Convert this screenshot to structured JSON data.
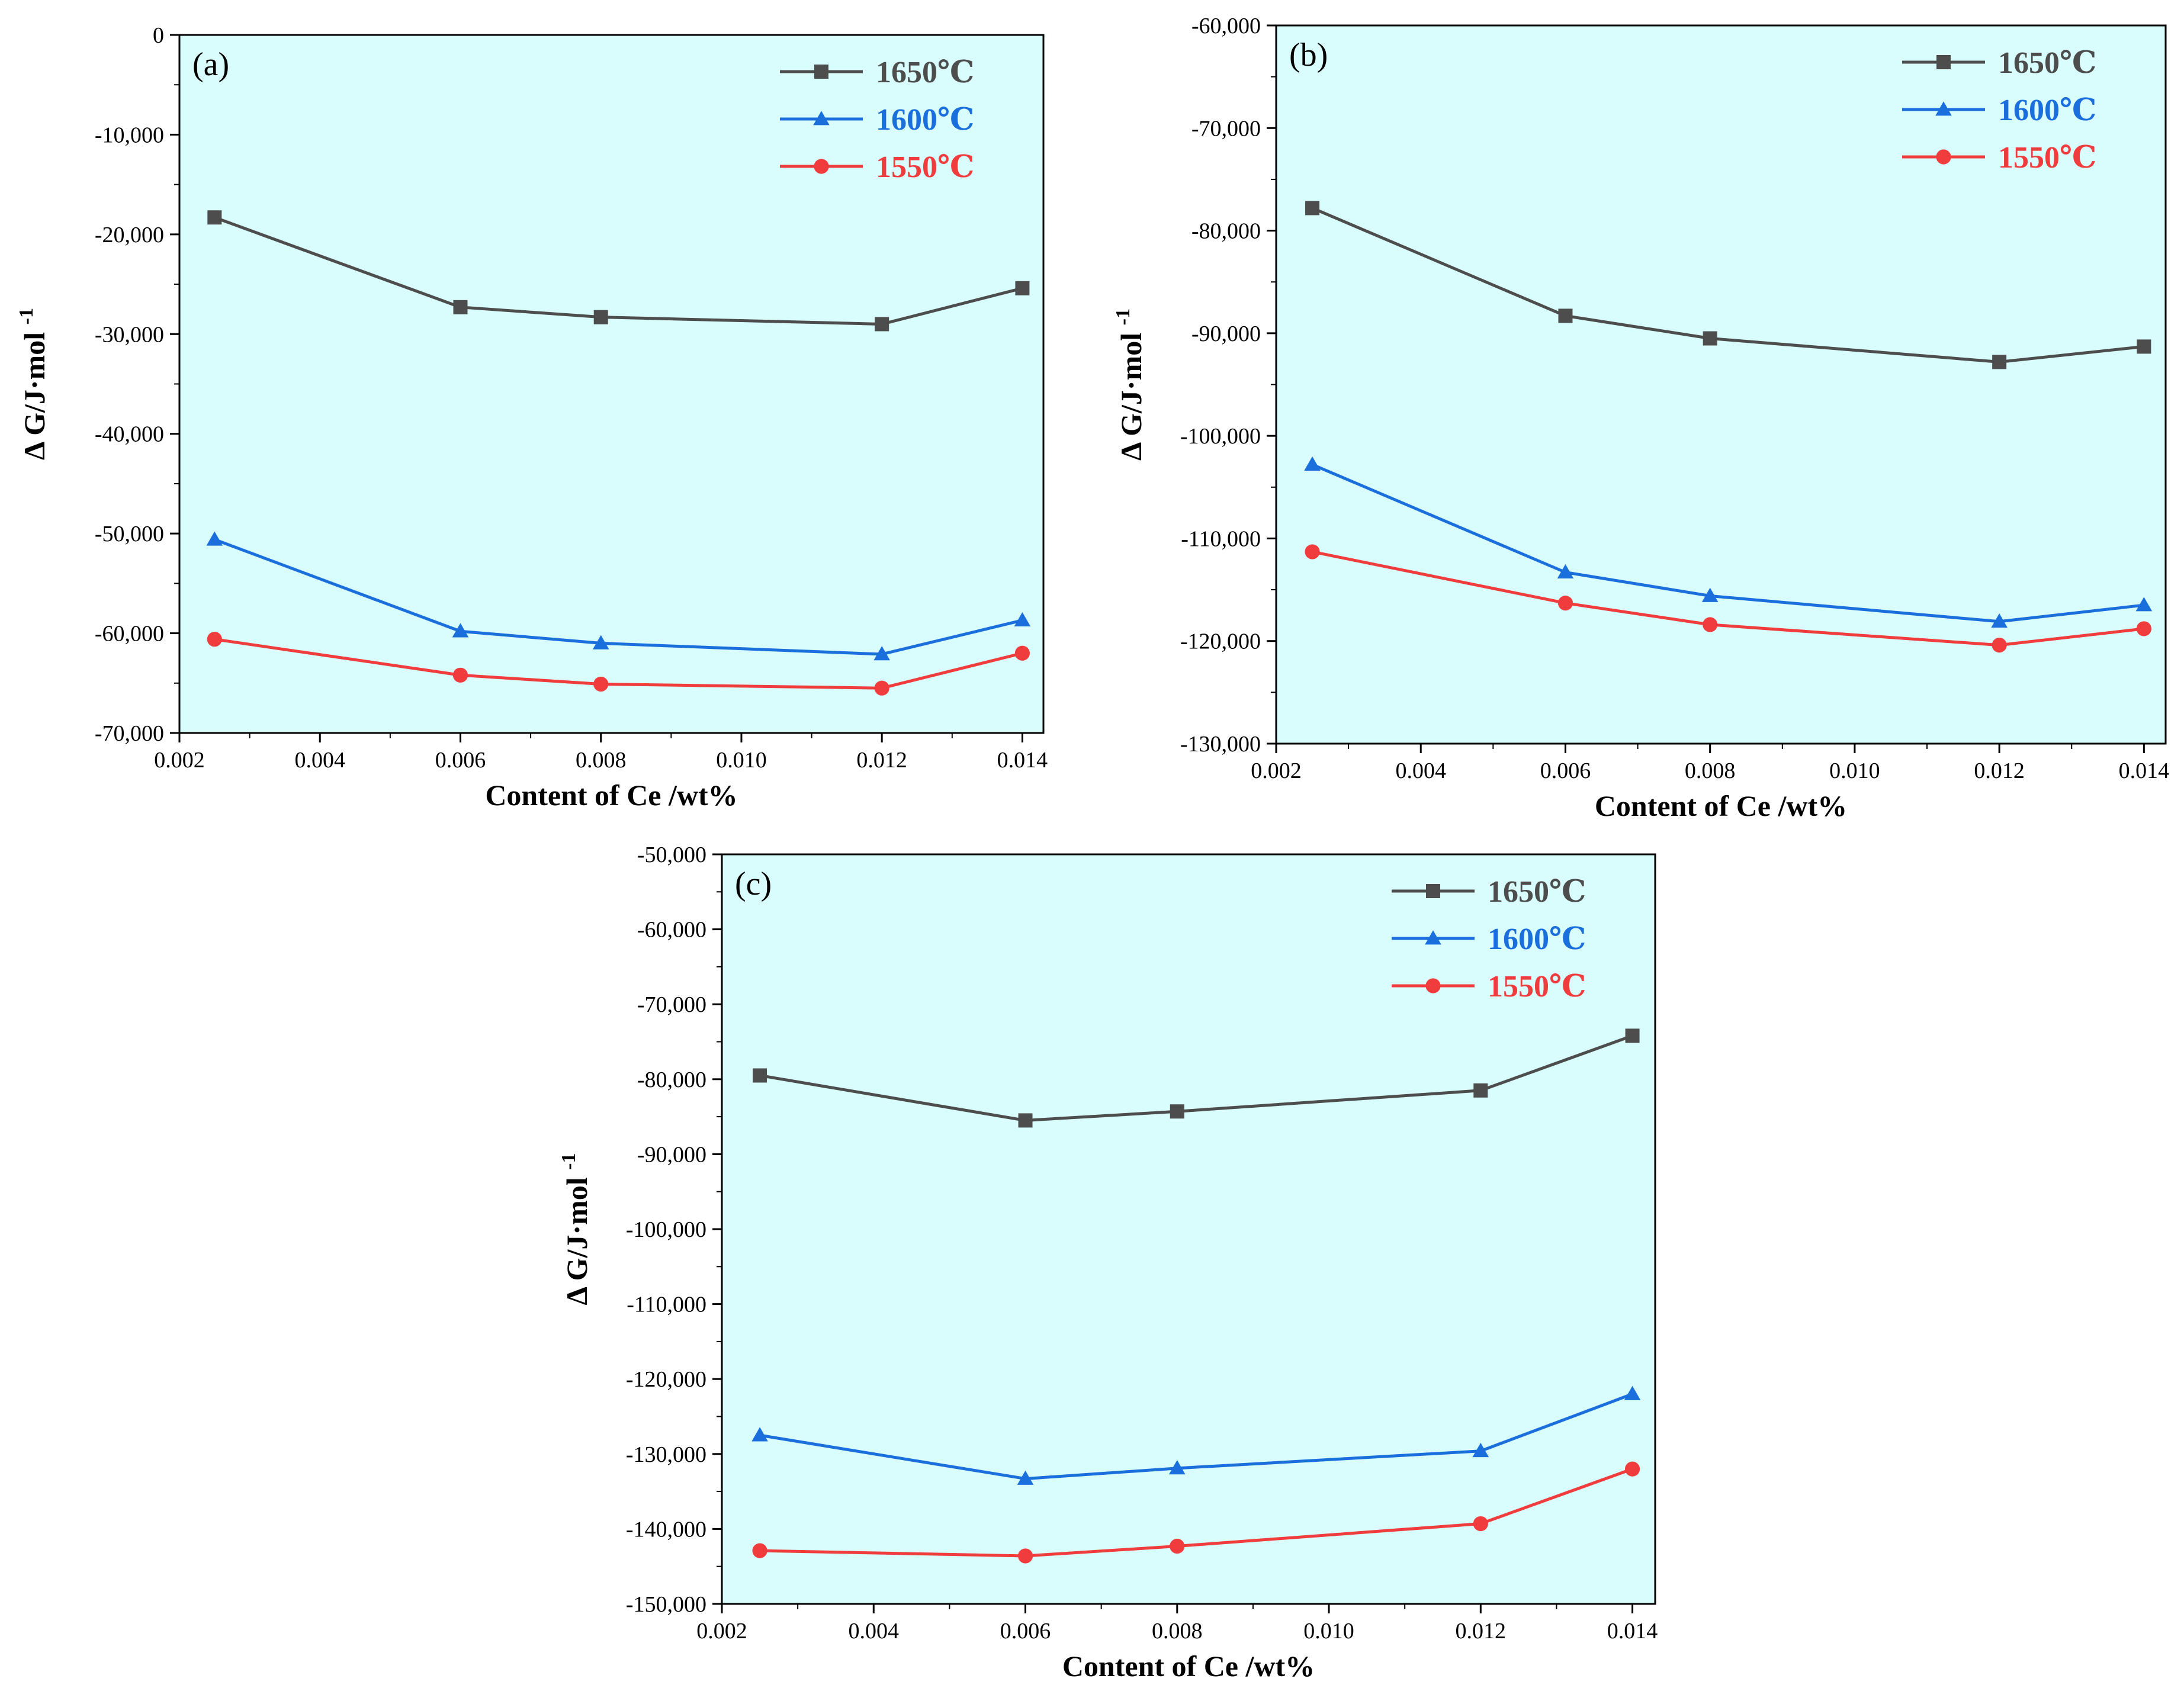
{
  "chart_data": [
    {
      "type": "line",
      "panel_label": "(a)",
      "xlabel": "Content of Ce /wt%",
      "ylabel_main": "Δ G/J·mol",
      "ylabel_sup": "-1",
      "xlim": [
        0.002,
        0.0143
      ],
      "ylim": [
        -70000,
        0
      ],
      "xticks": [
        0.002,
        0.004,
        0.006,
        0.008,
        0.01,
        0.012,
        0.014
      ],
      "xtick_labels": [
        "0.002",
        "0.004",
        "0.006",
        "0.008",
        "0.010",
        "0.012",
        "0.014"
      ],
      "yticks": [
        0,
        -10000,
        -20000,
        -30000,
        -40000,
        -50000,
        -60000,
        -70000
      ],
      "ytick_labels": [
        "0",
        "-10,000",
        "-20,000",
        "-30,000",
        "-40,000",
        "-50,000",
        "-60,000",
        "-70,000"
      ],
      "x": [
        0.0025,
        0.006,
        0.008,
        0.012,
        0.014
      ],
      "legend_position": "top-right",
      "series": [
        {
          "name": "1650℃",
          "color": "#4d4d4d",
          "marker": "square",
          "values": [
            -18300,
            -27300,
            -28300,
            -29000,
            -25400
          ]
        },
        {
          "name": "1600℃",
          "color": "#1a6fdc",
          "marker": "triangle",
          "values": [
            -50600,
            -59800,
            -61000,
            -62100,
            -58700
          ]
        },
        {
          "name": "1550℃",
          "color": "#f03c3c",
          "marker": "circle",
          "values": [
            -60600,
            -64200,
            -65100,
            -65500,
            -62000
          ]
        }
      ]
    },
    {
      "type": "line",
      "panel_label": "(b)",
      "xlabel": "Content of Ce /wt%",
      "ylabel_main": "Δ G/J·mol",
      "ylabel_sup": "-1",
      "xlim": [
        0.002,
        0.0143
      ],
      "ylim": [
        -130000,
        -60000
      ],
      "xticks": [
        0.002,
        0.004,
        0.006,
        0.008,
        0.01,
        0.012,
        0.014
      ],
      "xtick_labels": [
        "0.002",
        "0.004",
        "0.006",
        "0.008",
        "0.010",
        "0.012",
        "0.014"
      ],
      "yticks": [
        -60000,
        -70000,
        -80000,
        -90000,
        -100000,
        -110000,
        -120000,
        -130000
      ],
      "ytick_labels": [
        "-60,000",
        "-70,000",
        "-80,000",
        "-90,000",
        "-100,000",
        "-110,000",
        "-120,000",
        "-130,000"
      ],
      "x": [
        0.0025,
        0.006,
        0.008,
        0.012,
        0.014
      ],
      "legend_position": "top-right",
      "series": [
        {
          "name": "1650℃",
          "color": "#4d4d4d",
          "marker": "square",
          "values": [
            -77800,
            -88300,
            -90500,
            -92800,
            -91300
          ]
        },
        {
          "name": "1600℃",
          "color": "#1a6fdc",
          "marker": "triangle",
          "values": [
            -102800,
            -113300,
            -115600,
            -118100,
            -116500
          ]
        },
        {
          "name": "1550℃",
          "color": "#f03c3c",
          "marker": "circle",
          "values": [
            -111300,
            -116300,
            -118400,
            -120400,
            -118800
          ]
        }
      ]
    },
    {
      "type": "line",
      "panel_label": "(c)",
      "xlabel": "Content of Ce /wt%",
      "ylabel_main": "Δ G/J·mol",
      "ylabel_sup": "-1",
      "xlim": [
        0.002,
        0.0143
      ],
      "ylim": [
        -150000,
        -50000
      ],
      "xticks": [
        0.002,
        0.004,
        0.006,
        0.008,
        0.01,
        0.012,
        0.014
      ],
      "xtick_labels": [
        "0.002",
        "0.004",
        "0.006",
        "0.008",
        "0.010",
        "0.012",
        "0.014"
      ],
      "yticks": [
        -50000,
        -60000,
        -70000,
        -80000,
        -90000,
        -100000,
        -110000,
        -120000,
        -130000,
        -140000,
        -150000
      ],
      "ytick_labels": [
        "-50,000",
        "-60,000",
        "-70,000",
        "-80,000",
        "-90,000",
        "-100,000",
        "-110,000",
        "-120,000",
        "-130,000",
        "-140,000",
        "-150,000"
      ],
      "x": [
        0.0025,
        0.006,
        0.008,
        0.012,
        0.014
      ],
      "legend_position": "top-right",
      "series": [
        {
          "name": "1650℃",
          "color": "#4d4d4d",
          "marker": "square",
          "values": [
            -79500,
            -85500,
            -84300,
            -81500,
            -74200
          ]
        },
        {
          "name": "1600℃",
          "color": "#1a6fdc",
          "marker": "triangle",
          "values": [
            -127500,
            -133300,
            -131900,
            -129600,
            -122000
          ]
        },
        {
          "name": "1550℃",
          "color": "#f03c3c",
          "marker": "circle",
          "values": [
            -142900,
            -143600,
            -142300,
            -139300,
            -132000
          ]
        }
      ]
    }
  ],
  "colors": {
    "plot_background": "#d9fdfd",
    "axis": "#000000"
  }
}
